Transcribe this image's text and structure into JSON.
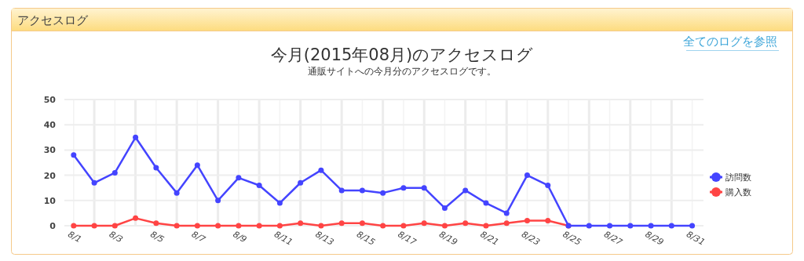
{
  "chart_data": {
    "type": "line",
    "title": "今月(2015年08月)のアクセスログ",
    "subtitle": "通販サイトへの今月分のアクセスログです。",
    "annotations": [
      "アクセスログ",
      "全てのログを参照"
    ],
    "categories": [
      "8/1",
      null,
      "8/3",
      null,
      "8/5",
      null,
      "8/7",
      null,
      "8/9",
      null,
      "8/11",
      null,
      "8/13",
      null,
      "8/15",
      null,
      "8/17",
      null,
      "8/19",
      null,
      "8/21",
      null,
      "8/23",
      null,
      "8/25",
      null,
      "8/27",
      null,
      "8/29",
      null,
      "8/31"
    ],
    "series": [
      {
        "name": "購入数",
        "color": "#ff4444",
        "values": [
          0,
          0,
          0,
          3,
          1,
          0,
          0,
          0,
          0,
          0,
          0,
          1,
          0,
          1,
          1,
          0,
          0,
          1,
          0,
          1,
          0,
          1,
          2,
          2,
          0,
          null,
          null,
          null,
          null,
          null,
          null
        ]
      },
      {
        "name": "訪問数",
        "color": "#4444ff",
        "values": [
          28,
          17,
          21,
          35,
          23,
          13,
          24,
          10,
          19,
          16,
          9,
          17,
          22,
          14,
          14,
          13,
          15,
          15,
          7,
          14,
          9,
          5,
          20,
          16,
          0,
          0,
          0,
          0,
          0,
          0,
          0
        ]
      }
    ],
    "ylim": [
      0,
      50
    ],
    "yticks": [
      0,
      10,
      20,
      30,
      40,
      50
    ],
    "grid": true,
    "legend": "right",
    "marker": "circle",
    "line_style": "solid"
  }
}
